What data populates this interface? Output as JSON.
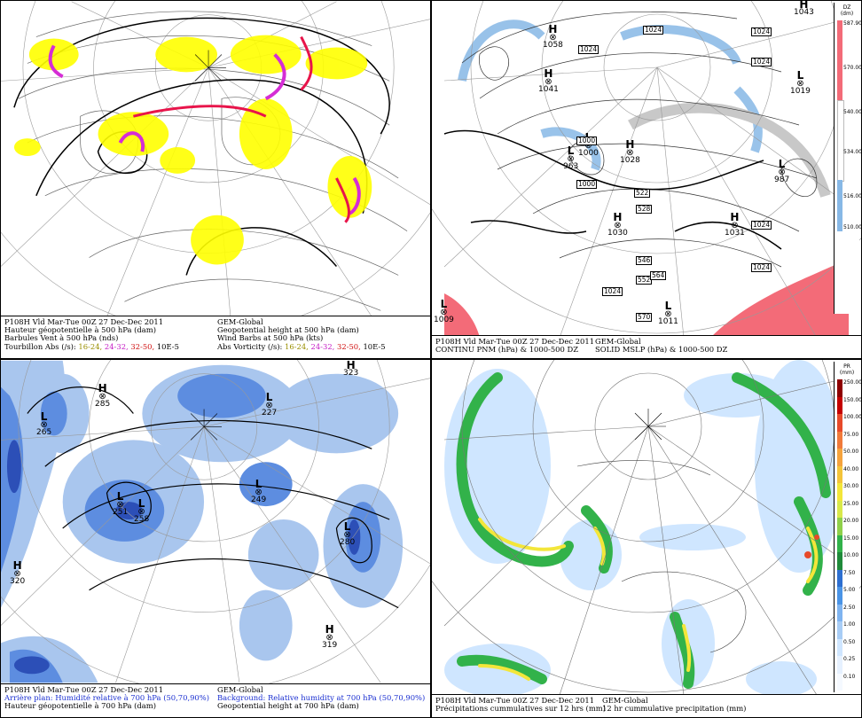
{
  "panels": {
    "p1": {
      "left_lines": [
        "P108H Vld Mar-Tue 00Z 27 Dec-Dec 2011",
        "Hauteur géopotentielle à 500 hPa (dam)",
        "Barbules Vent à 500 hPa (nds)"
      ],
      "right_lines": [
        "GEM-Global",
        "Geopotential height at 500 hPa (dam)",
        "Wind Barbs at 500 hPa  (kts)"
      ],
      "vort_left_label": "Tourbillon Abs (/s):",
      "vort_right_label": "Abs Vorticity (/s):",
      "ranges": [
        "16-24,",
        "24-32,",
        "32-50,"
      ],
      "unit": "10E-5"
    },
    "p2": {
      "left_lines": [
        "P108H Vld Mar-Tue 00Z 27 Dec-Dec 2011",
        "CONTINU PNM  (hPa) & 1000-500 DZ"
      ],
      "right_lines": [
        "GEM-Global",
        "SOLID  MSLP (hPa) & 1000-500 DZ"
      ],
      "colorbar": {
        "title": "DZ",
        "unit": "(dm)",
        "labels": [
          "587.90",
          "570.00",
          "540.00",
          "534.00",
          "516.00",
          "510.00"
        ]
      },
      "centers": [
        {
          "type": "H",
          "value": "1058"
        },
        {
          "type": "H",
          "value": "1041"
        },
        {
          "type": "L",
          "value": "1019"
        },
        {
          "type": "L",
          "value": "1000"
        },
        {
          "type": "L",
          "value": "963"
        },
        {
          "type": "H",
          "value": "1028"
        },
        {
          "type": "H",
          "value": "1030"
        },
        {
          "type": "H",
          "value": "1031"
        },
        {
          "type": "L",
          "value": "987"
        },
        {
          "type": "L",
          "value": "1009"
        },
        {
          "type": "L",
          "value": "1011"
        },
        {
          "type": "H",
          "value": "1043"
        }
      ],
      "boxes": [
        "1024",
        "1024",
        "1024",
        "1024",
        "1000",
        "1024",
        "1024",
        "1000",
        "522",
        "528",
        "546",
        "552",
        "564",
        "570",
        "1024"
      ]
    },
    "p3": {
      "left_lines": [
        "P108H Vld Mar-Tue 00Z 27 Dec-Dec 2011",
        "Arrière plan: Humidité relative à 700 hPa (50,70,90%)",
        "Hauteur géopotentielle à 700 hPa (dam)"
      ],
      "right_lines": [
        "GEM-Global",
        "Background: Relative humidity at 700 hPa (50,70,90%)",
        "Geopotential height at 700 hPa (dam)"
      ],
      "centers": [
        {
          "type": "H",
          "value": "285"
        },
        {
          "type": "L",
          "value": "265"
        },
        {
          "type": "L",
          "value": "227"
        },
        {
          "type": "L",
          "value": "251"
        },
        {
          "type": "L",
          "value": "258"
        },
        {
          "type": "L",
          "value": "249"
        },
        {
          "type": "L",
          "value": "280"
        },
        {
          "type": "H",
          "value": "320"
        },
        {
          "type": "H",
          "value": "319"
        },
        {
          "type": "H",
          "value": "323"
        }
      ]
    },
    "p4": {
      "left_lines": [
        "P108H Vld Mar-Tue 00Z 27 Dec-Dec 2011",
        "Précipitations cummulatives sur 12 hrs (mm)"
      ],
      "right_lines": [
        "GEM-Global",
        "12 hr cummulative precipitation      (mm)"
      ],
      "colorbar": {
        "title": "PR",
        "unit": "(mm)",
        "labels": [
          "250.00",
          "150.00",
          "100.00",
          "75.00",
          "50.00",
          "40.00",
          "30.00",
          "25.00",
          "20.00",
          "15.00",
          "10.00",
          "7.50",
          "5.00",
          "2.50",
          "1.00",
          "0.50",
          "0.25",
          "0.10"
        ]
      }
    }
  },
  "colors": {
    "vort_yellow": "#ffff00",
    "vort_magenta": "#d52dd5",
    "vort_red": "#e8144a",
    "rh_light": "#a9c6ee",
    "rh_mid": "#5d8de0",
    "rh_dark": "#2c4fb7",
    "dz_warm": "#f36b78",
    "dz_cold": "#87b8e6",
    "pr_cyan": "#cfe6ff",
    "pr_green": "#32b24a",
    "pr_yellow": "#f3e63a",
    "pr_red": "#e74a2a"
  }
}
